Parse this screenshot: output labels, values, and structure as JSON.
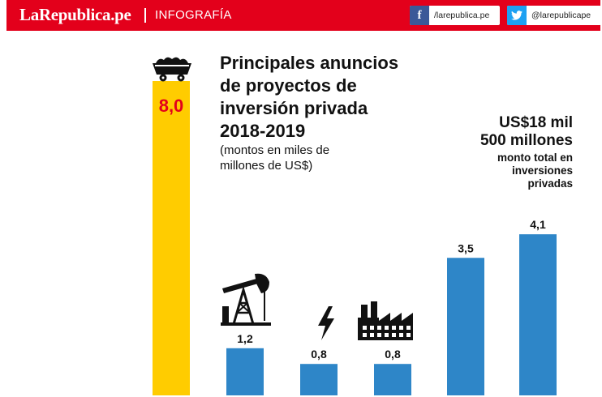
{
  "header": {
    "brand": "LaRepublica.pe",
    "section": "INFOGRAFÍA",
    "facebook": "/larepublica.pe",
    "twitter": "@larepublicape"
  },
  "title_lines": [
    "Principales anuncios",
    "de proyectos de",
    "inversión privada",
    "2018-2019"
  ],
  "subtitle_lines": [
    "(montos en miles de",
    "millones de US$)"
  ],
  "total": {
    "amount_lines": [
      "US$18 mil",
      "500 millones"
    ],
    "desc_lines": [
      "monto total en",
      "inversiones",
      "privadas"
    ]
  },
  "colors": {
    "header": "#e3001b",
    "highlight_bar": "#ffcc00",
    "bar": "#2e86c8",
    "highlight_label": "#e3001b"
  },
  "icons": [
    "mine-cart-icon",
    "oil-pump-icon",
    "lightning-icon",
    "factory-icon"
  ],
  "chart_data": {
    "type": "bar",
    "title": "Principales anuncios de proyectos de inversión privada 2018-2019",
    "subtitle": "(montos en miles de millones de US$)",
    "xlabel": "",
    "ylabel": "",
    "ylim": [
      0,
      8.0
    ],
    "grid": false,
    "values": [
      8.0,
      1.2,
      0.8,
      0.8,
      3.5,
      4.1
    ],
    "value_labels": [
      "8,0",
      "1,2",
      "0,8",
      "0,8",
      "3,5",
      "4,1"
    ],
    "highlight_index": 0
  }
}
